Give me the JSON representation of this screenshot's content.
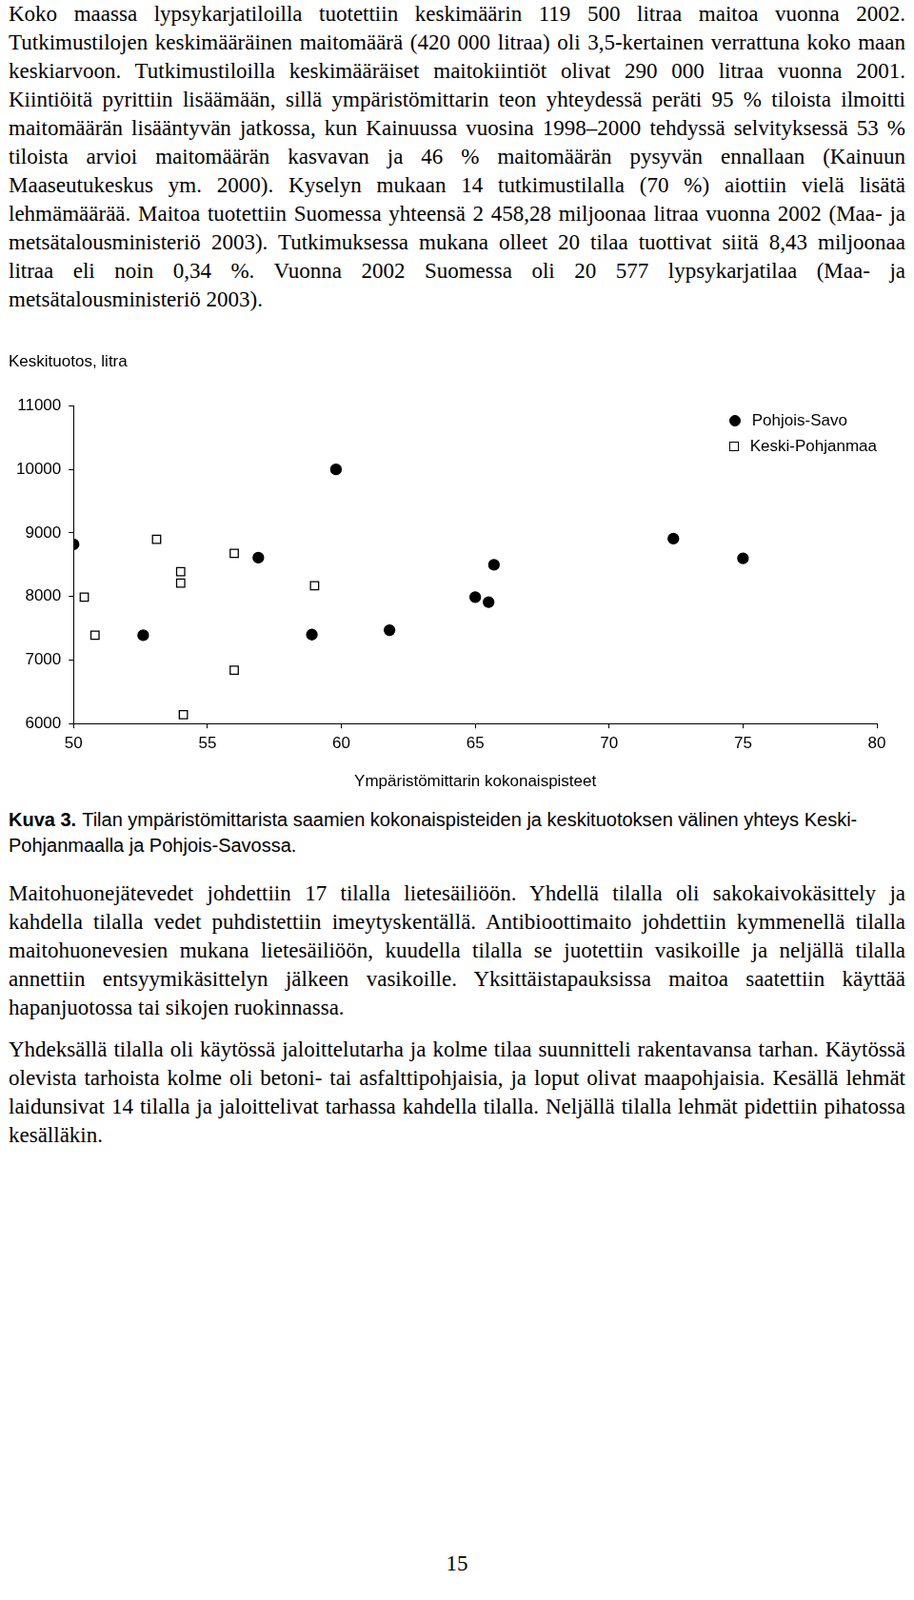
{
  "paragraphs_before": [
    "Koko maassa lypsykarjatiloilla tuotettiin keskimäärin 119 500 litraa maitoa vuonna 2002. Tutkimustilojen keskimääräinen maitomäärä (420 000 litraa) oli 3,5-kertainen verrattuna koko maan keskiarvoon. Tutkimustiloilla keskimääräiset maitokiintiöt olivat 290 000 litraa vuonna 2001. Kiintiöitä pyrittiin lisäämään, sillä ympäristömittarin teon yhteydessä peräti 95 % tiloista ilmoitti maitomäärän lisääntyvän jatkossa, kun Kainuussa vuosina 1998–2000 tehdyssä selvityksessä 53 % tiloista arvioi maitomäärän kasvavan ja 46 % maitomäärän pysyvän ennallaan (Kainuun Maaseutukeskus ym. 2000). Kyselyn mukaan 14 tutkimustilalla (70 %) aiottiin vielä lisätä lehmämäärää. Maitoa tuotettiin Suomessa yhteensä 2 458,28 miljoonaa litraa vuonna 2002 (Maa- ja metsätalousministeriö 2003). Tutkimuksessa mukana olleet 20 tilaa tuottivat siitä 8,43 miljoonaa litraa eli noin 0,34 %. Vuonna 2002 Suomessa oli 20 577 lypsykarjatilaa (Maa- ja metsätalousministeriö 2003)."
  ],
  "chart_data": {
    "type": "scatter",
    "y_label": "Keskituotos, litra",
    "x_label": "Ympäristömittarin kokonaispisteet",
    "xlim": [
      50,
      80
    ],
    "xticks": [
      50,
      55,
      60,
      65,
      70,
      75,
      80
    ],
    "ylim": [
      6000,
      11000
    ],
    "yticks": [
      6000,
      7000,
      8000,
      9000,
      10000,
      11000
    ],
    "grid": false,
    "legend": "top right",
    "series": [
      {
        "name": "Pohjois-Savo",
        "color": "#000000",
        "marker": "circle",
        "x": [
          50.0,
          59.8,
          52.6,
          56.9,
          58.9,
          61.8,
          65.0,
          65.5,
          65.7,
          72.4,
          75.0
        ],
        "values": [
          8820,
          10000,
          7390,
          8610,
          7400,
          7470,
          7990,
          7910,
          8500,
          8910,
          8600
        ]
      },
      {
        "name": "Keski-Pohjanmaa",
        "color": "#000000",
        "marker": "open_square",
        "x": [
          50.4,
          50.8,
          53.1,
          54.0,
          54.0,
          54.1,
          56.0,
          56.0,
          59.0
        ],
        "values": [
          7990,
          7390,
          8900,
          8390,
          8210,
          6140,
          8680,
          6840,
          8170
        ]
      }
    ]
  },
  "caption": {
    "label": "Kuva 3.",
    "text": "Tilan ympäristömittarista saamien kokonaispisteiden ja keskituotoksen välinen yhteys Keski-Pohjanmaalla ja Pohjois-Savossa."
  },
  "paragraphs_after": [
    "Maitohuonejätevedet johdettiin 17 tilalla lietesäiliöön. Yhdellä tilalla oli sakokaivokäsittely ja kahdella tilalla vedet puhdistettiin imeytyskentällä. Antibioottimaito johdettiin kymmenellä tilalla maitohuonevesien mukana lietesäiliöön, kuudella tilalla se juotettiin vasikoille ja neljällä tilalla annettiin entsyymikäsittelyn jälkeen vasikoille. Yksittäistapauksissa maitoa saatettiin käyttää hapanjuotossa tai sikojen ruokinnassa.",
    "Yhdeksällä tilalla oli käytössä jaloittelutarha ja kolme tilaa suunnitteli rakentavansa tarhan. Käytössä olevista tarhoista kolme oli betoni- tai asfalttipohjaisia, ja loput olivat maapohjaisia. Kesällä lehmät laidunsivat 14 tilalla ja jaloittelivat tarhassa kahdella tilalla. Neljällä tilalla lehmät pidettiin pihatossa kesälläkin."
  ],
  "page_number": "15"
}
